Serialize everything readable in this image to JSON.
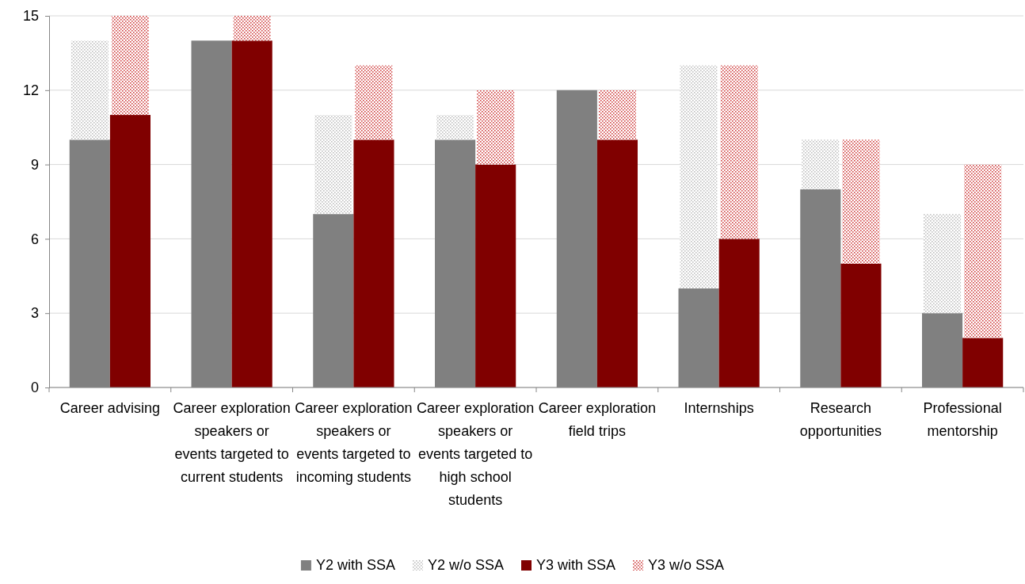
{
  "chart_data": {
    "type": "bar",
    "categories": [
      "Career advising",
      "Career exploration speakers or events targeted to current students",
      "Career exploration speakers or events targeted to incoming students",
      "Career exploration speakers or events targeted to high school students",
      "Career exploration field trips",
      "Internships",
      "Research opportunities",
      "Professional mentorship"
    ],
    "series": [
      {
        "name": "Y2 with SSA",
        "color": "#808080",
        "values": [
          10,
          14,
          7,
          10,
          12,
          4,
          8,
          3
        ]
      },
      {
        "name": "Y2 w/o SSA",
        "color": "#bfbfbf",
        "base": [
          10,
          null,
          7,
          10,
          null,
          4,
          8,
          3
        ],
        "values": [
          4,
          null,
          4,
          1,
          null,
          9,
          2,
          4
        ]
      },
      {
        "name": "Y3 with SSA",
        "color": "#800000",
        "values": [
          11,
          14,
          10,
          9,
          10,
          6,
          5,
          2
        ]
      },
      {
        "name": "Y3 w/o SSA",
        "color": "#d04040",
        "base": [
          11,
          14,
          10,
          9,
          10,
          6,
          5,
          2
        ],
        "values": [
          4,
          1,
          3,
          3,
          2,
          7,
          5,
          7
        ]
      }
    ],
    "ylim": [
      0,
      15
    ],
    "yticks": [
      0,
      3,
      6,
      9,
      12,
      15
    ],
    "grid": "y",
    "legend": "bottom"
  }
}
